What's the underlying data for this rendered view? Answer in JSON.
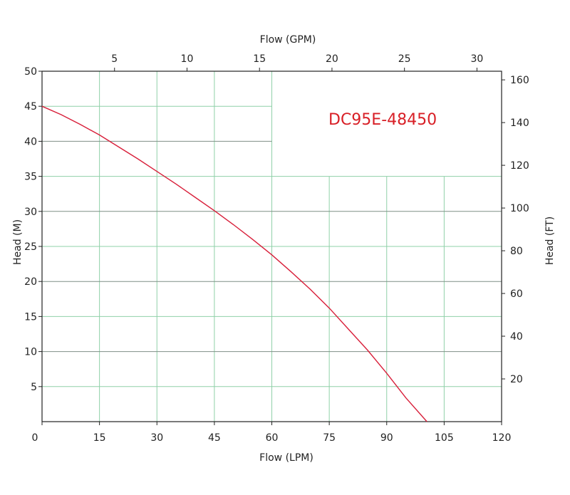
{
  "chart_data": {
    "type": "line",
    "title": "DC95E-48450",
    "xlabel": "Flow (LPM)",
    "ylabel": "Head (M)",
    "x2label": "Flow (GPM)",
    "y2label": "Head (FT)",
    "xlim": [
      0,
      120
    ],
    "ylim": [
      0,
      50
    ],
    "x_ticks": [
      0,
      15,
      30,
      45,
      60,
      75,
      90,
      105,
      120
    ],
    "y_ticks": [
      5,
      10,
      15,
      20,
      25,
      30,
      35,
      40,
      45,
      50
    ],
    "x2_ticks": [
      5,
      10,
      15,
      20,
      25,
      30
    ],
    "y2_ticks": [
      20,
      40,
      60,
      80,
      100,
      120,
      140,
      160
    ],
    "grid": true,
    "series": [
      {
        "color": "#d81f3a",
        "x": [
          0,
          5,
          10,
          15,
          20,
          25,
          30,
          35,
          40,
          45,
          50,
          55,
          60,
          65,
          70,
          75,
          80,
          85,
          90,
          95,
          100.5
        ],
        "y": [
          45,
          43.8,
          42.4,
          40.9,
          39.2,
          37.5,
          35.7,
          33.9,
          32.0,
          30.1,
          28.1,
          26.0,
          23.8,
          21.4,
          18.9,
          16.2,
          13.2,
          10.2,
          6.9,
          3.4,
          0
        ]
      }
    ]
  }
}
